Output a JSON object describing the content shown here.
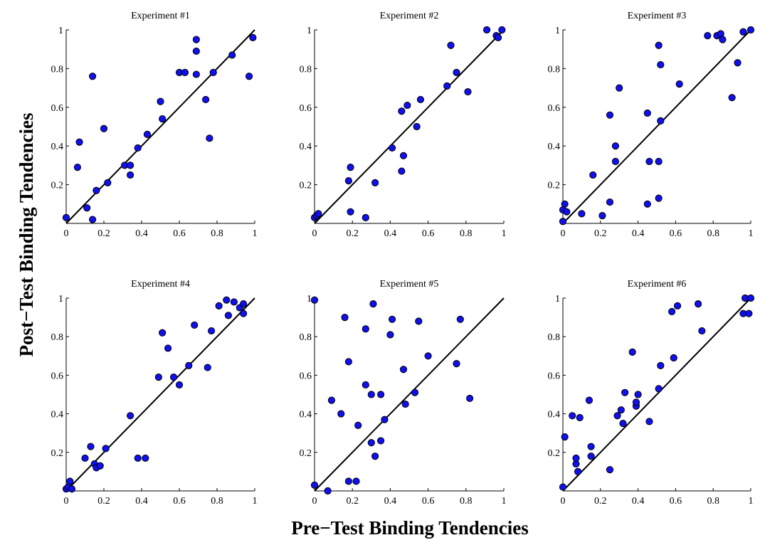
{
  "figure": {
    "xlabel": "Pre−Test Binding Tendencies",
    "ylabel": "Post−Test Binding Tendencies",
    "point_color": "#1010ee",
    "point_edge": "#000000"
  },
  "chart_data": [
    {
      "type": "scatter",
      "title": "Experiment #1",
      "xlim": [
        0,
        1
      ],
      "ylim": [
        0,
        1
      ],
      "xticks": [
        "0",
        "0.2",
        "0.4",
        "0.6",
        "0.8",
        "1"
      ],
      "yticks": [
        "0.2",
        "0.4",
        "0.6",
        "0.8",
        "1"
      ],
      "reference_line": "y = x",
      "points": [
        {
          "x": 0.0,
          "y": 0.03
        },
        {
          "x": 0.06,
          "y": 0.29
        },
        {
          "x": 0.07,
          "y": 0.42
        },
        {
          "x": 0.11,
          "y": 0.08
        },
        {
          "x": 0.14,
          "y": 0.76
        },
        {
          "x": 0.14,
          "y": 0.02
        },
        {
          "x": 0.16,
          "y": 0.17
        },
        {
          "x": 0.2,
          "y": 0.49
        },
        {
          "x": 0.22,
          "y": 0.21
        },
        {
          "x": 0.31,
          "y": 0.3
        },
        {
          "x": 0.34,
          "y": 0.3
        },
        {
          "x": 0.34,
          "y": 0.25
        },
        {
          "x": 0.38,
          "y": 0.39
        },
        {
          "x": 0.43,
          "y": 0.46
        },
        {
          "x": 0.5,
          "y": 0.63
        },
        {
          "x": 0.51,
          "y": 0.54
        },
        {
          "x": 0.6,
          "y": 0.78
        },
        {
          "x": 0.63,
          "y": 0.78
        },
        {
          "x": 0.69,
          "y": 0.95
        },
        {
          "x": 0.69,
          "y": 0.89
        },
        {
          "x": 0.69,
          "y": 0.77
        },
        {
          "x": 0.74,
          "y": 0.64
        },
        {
          "x": 0.76,
          "y": 0.44
        },
        {
          "x": 0.78,
          "y": 0.78
        },
        {
          "x": 0.88,
          "y": 0.87
        },
        {
          "x": 0.97,
          "y": 0.76
        },
        {
          "x": 0.99,
          "y": 0.96
        }
      ]
    },
    {
      "type": "scatter",
      "title": "Experiment #2",
      "xlim": [
        0,
        1
      ],
      "ylim": [
        0,
        1
      ],
      "xticks": [
        "0",
        "0.2",
        "0.4",
        "0.6",
        "0.8",
        "1"
      ],
      "yticks": [
        "0.2",
        "0.4",
        "0.6",
        "0.8",
        "1"
      ],
      "reference_line": "y = x",
      "points": [
        {
          "x": 0.0,
          "y": 0.03
        },
        {
          "x": 0.01,
          "y": 0.04
        },
        {
          "x": 0.02,
          "y": 0.05
        },
        {
          "x": 0.18,
          "y": 0.22
        },
        {
          "x": 0.19,
          "y": 0.29
        },
        {
          "x": 0.19,
          "y": 0.06
        },
        {
          "x": 0.27,
          "y": 0.03
        },
        {
          "x": 0.32,
          "y": 0.21
        },
        {
          "x": 0.41,
          "y": 0.39
        },
        {
          "x": 0.46,
          "y": 0.58
        },
        {
          "x": 0.46,
          "y": 0.27
        },
        {
          "x": 0.47,
          "y": 0.35
        },
        {
          "x": 0.49,
          "y": 0.61
        },
        {
          "x": 0.54,
          "y": 0.5
        },
        {
          "x": 0.56,
          "y": 0.64
        },
        {
          "x": 0.7,
          "y": 0.71
        },
        {
          "x": 0.72,
          "y": 0.92
        },
        {
          "x": 0.75,
          "y": 0.78
        },
        {
          "x": 0.81,
          "y": 0.68
        },
        {
          "x": 0.91,
          "y": 1.0
        },
        {
          "x": 0.96,
          "y": 0.97
        },
        {
          "x": 0.97,
          "y": 0.96
        },
        {
          "x": 0.99,
          "y": 1.0
        }
      ]
    },
    {
      "type": "scatter",
      "title": "Experiment #3",
      "xlim": [
        0,
        1
      ],
      "ylim": [
        0,
        1
      ],
      "xticks": [
        "0",
        "0.2",
        "0.4",
        "0.6",
        "0.8",
        "1"
      ],
      "yticks": [
        "0.2",
        "0.4",
        "0.6",
        "0.8",
        "1"
      ],
      "reference_line": "y = x",
      "points": [
        {
          "x": 0.0,
          "y": 0.01
        },
        {
          "x": 0.0,
          "y": 0.07
        },
        {
          "x": 0.01,
          "y": 0.1
        },
        {
          "x": 0.02,
          "y": 0.06
        },
        {
          "x": 0.1,
          "y": 0.05
        },
        {
          "x": 0.16,
          "y": 0.25
        },
        {
          "x": 0.21,
          "y": 0.04
        },
        {
          "x": 0.25,
          "y": 0.56
        },
        {
          "x": 0.25,
          "y": 0.11
        },
        {
          "x": 0.28,
          "y": 0.4
        },
        {
          "x": 0.28,
          "y": 0.32
        },
        {
          "x": 0.3,
          "y": 0.7
        },
        {
          "x": 0.45,
          "y": 0.57
        },
        {
          "x": 0.45,
          "y": 0.1
        },
        {
          "x": 0.46,
          "y": 0.32
        },
        {
          "x": 0.51,
          "y": 0.92
        },
        {
          "x": 0.51,
          "y": 0.32
        },
        {
          "x": 0.51,
          "y": 0.13
        },
        {
          "x": 0.52,
          "y": 0.82
        },
        {
          "x": 0.52,
          "y": 0.53
        },
        {
          "x": 0.62,
          "y": 0.72
        },
        {
          "x": 0.77,
          "y": 0.97
        },
        {
          "x": 0.82,
          "y": 0.97
        },
        {
          "x": 0.84,
          "y": 0.98
        },
        {
          "x": 0.85,
          "y": 0.95
        },
        {
          "x": 0.9,
          "y": 0.65
        },
        {
          "x": 0.93,
          "y": 0.83
        },
        {
          "x": 0.96,
          "y": 0.99
        },
        {
          "x": 1.0,
          "y": 1.0
        }
      ]
    },
    {
      "type": "scatter",
      "title": "Experiment #4",
      "xlim": [
        0,
        1
      ],
      "ylim": [
        0,
        1
      ],
      "xticks": [
        "0",
        "0.2",
        "0.4",
        "0.6",
        "0.8",
        "1"
      ],
      "yticks": [
        "0.2",
        "0.4",
        "0.6",
        "0.8",
        "1"
      ],
      "reference_line": "y = x",
      "points": [
        {
          "x": 0.0,
          "y": 0.01
        },
        {
          "x": 0.01,
          "y": 0.02
        },
        {
          "x": 0.02,
          "y": 0.05
        },
        {
          "x": 0.03,
          "y": 0.01
        },
        {
          "x": 0.1,
          "y": 0.17
        },
        {
          "x": 0.13,
          "y": 0.23
        },
        {
          "x": 0.15,
          "y": 0.14
        },
        {
          "x": 0.16,
          "y": 0.12
        },
        {
          "x": 0.18,
          "y": 0.13
        },
        {
          "x": 0.21,
          "y": 0.22
        },
        {
          "x": 0.34,
          "y": 0.39
        },
        {
          "x": 0.38,
          "y": 0.17
        },
        {
          "x": 0.42,
          "y": 0.17
        },
        {
          "x": 0.49,
          "y": 0.59
        },
        {
          "x": 0.51,
          "y": 0.82
        },
        {
          "x": 0.54,
          "y": 0.74
        },
        {
          "x": 0.57,
          "y": 0.59
        },
        {
          "x": 0.6,
          "y": 0.55
        },
        {
          "x": 0.65,
          "y": 0.65
        },
        {
          "x": 0.68,
          "y": 0.86
        },
        {
          "x": 0.75,
          "y": 0.64
        },
        {
          "x": 0.77,
          "y": 0.83
        },
        {
          "x": 0.81,
          "y": 0.96
        },
        {
          "x": 0.85,
          "y": 0.99
        },
        {
          "x": 0.86,
          "y": 0.91
        },
        {
          "x": 0.89,
          "y": 0.98
        },
        {
          "x": 0.92,
          "y": 0.95
        },
        {
          "x": 0.94,
          "y": 0.97
        },
        {
          "x": 0.94,
          "y": 0.92
        }
      ]
    },
    {
      "type": "scatter",
      "title": "Experiment #5",
      "xlim": [
        0,
        1
      ],
      "ylim": [
        0,
        1
      ],
      "xticks": [
        "0",
        "0.2",
        "0.4",
        "0.6",
        "0.8",
        "1"
      ],
      "yticks": [
        "0.2",
        "0.4",
        "0.6",
        "0.8",
        "1"
      ],
      "reference_line": "y = x",
      "points": [
        {
          "x": 0.0,
          "y": 0.99
        },
        {
          "x": 0.0,
          "y": 0.03
        },
        {
          "x": 0.07,
          "y": 0.0
        },
        {
          "x": 0.09,
          "y": 0.47
        },
        {
          "x": 0.14,
          "y": 0.4
        },
        {
          "x": 0.16,
          "y": 0.9
        },
        {
          "x": 0.18,
          "y": 0.67
        },
        {
          "x": 0.18,
          "y": 0.05
        },
        {
          "x": 0.22,
          "y": 0.05
        },
        {
          "x": 0.23,
          "y": 0.34
        },
        {
          "x": 0.27,
          "y": 0.55
        },
        {
          "x": 0.27,
          "y": 0.84
        },
        {
          "x": 0.3,
          "y": 0.5
        },
        {
          "x": 0.3,
          "y": 0.25
        },
        {
          "x": 0.31,
          "y": 0.97
        },
        {
          "x": 0.32,
          "y": 0.18
        },
        {
          "x": 0.35,
          "y": 0.5
        },
        {
          "x": 0.35,
          "y": 0.26
        },
        {
          "x": 0.37,
          "y": 0.37
        },
        {
          "x": 0.4,
          "y": 0.81
        },
        {
          "x": 0.41,
          "y": 0.89
        },
        {
          "x": 0.47,
          "y": 0.63
        },
        {
          "x": 0.48,
          "y": 0.45
        },
        {
          "x": 0.53,
          "y": 0.51
        },
        {
          "x": 0.55,
          "y": 0.88
        },
        {
          "x": 0.6,
          "y": 0.7
        },
        {
          "x": 0.75,
          "y": 0.66
        },
        {
          "x": 0.77,
          "y": 0.89
        },
        {
          "x": 0.82,
          "y": 0.48
        }
      ]
    },
    {
      "type": "scatter",
      "title": "Experiment #6",
      "xlim": [
        0,
        1
      ],
      "ylim": [
        0,
        1
      ],
      "xticks": [
        "0",
        "0.2",
        "0.4",
        "0.6",
        "0.8",
        "1"
      ],
      "yticks": [
        "0.2",
        "0.4",
        "0.6",
        "0.8",
        "1"
      ],
      "reference_line": "y = x",
      "points": [
        {
          "x": 0.0,
          "y": 0.02
        },
        {
          "x": 0.01,
          "y": 0.28
        },
        {
          "x": 0.05,
          "y": 0.39
        },
        {
          "x": 0.07,
          "y": 0.14
        },
        {
          "x": 0.07,
          "y": 0.17
        },
        {
          "x": 0.08,
          "y": 0.1
        },
        {
          "x": 0.09,
          "y": 0.38
        },
        {
          "x": 0.14,
          "y": 0.47
        },
        {
          "x": 0.15,
          "y": 0.23
        },
        {
          "x": 0.15,
          "y": 0.18
        },
        {
          "x": 0.25,
          "y": 0.11
        },
        {
          "x": 0.29,
          "y": 0.39
        },
        {
          "x": 0.31,
          "y": 0.42
        },
        {
          "x": 0.32,
          "y": 0.35
        },
        {
          "x": 0.33,
          "y": 0.51
        },
        {
          "x": 0.37,
          "y": 0.72
        },
        {
          "x": 0.39,
          "y": 0.44
        },
        {
          "x": 0.39,
          "y": 0.46
        },
        {
          "x": 0.4,
          "y": 0.5
        },
        {
          "x": 0.46,
          "y": 0.36
        },
        {
          "x": 0.51,
          "y": 0.53
        },
        {
          "x": 0.52,
          "y": 0.65
        },
        {
          "x": 0.58,
          "y": 0.93
        },
        {
          "x": 0.59,
          "y": 0.69
        },
        {
          "x": 0.61,
          "y": 0.96
        },
        {
          "x": 0.72,
          "y": 0.97
        },
        {
          "x": 0.74,
          "y": 0.83
        },
        {
          "x": 0.96,
          "y": 0.92
        },
        {
          "x": 0.97,
          "y": 1.0
        },
        {
          "x": 0.99,
          "y": 0.92
        },
        {
          "x": 1.0,
          "y": 1.0
        }
      ]
    }
  ]
}
